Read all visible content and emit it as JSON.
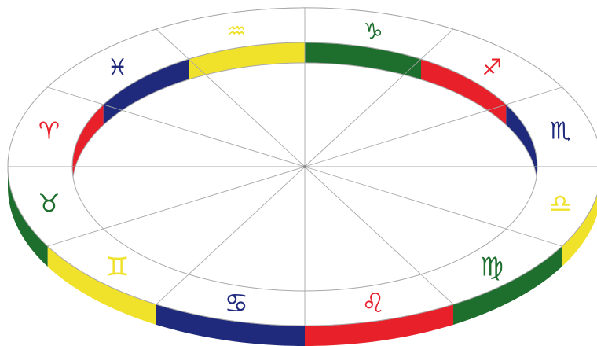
{
  "colors": {
    "red": "#e8202a",
    "blue": "#1f2a7c",
    "yellow": "#f0e12a",
    "green": "#1e6e2e",
    "line": "#a8a8a8",
    "background": "#ffffff"
  },
  "signs": [
    {
      "key": "capricorn",
      "glyph": "♑",
      "color": "green",
      "label": "Capricorn"
    },
    {
      "key": "sagittarius",
      "glyph": "♐",
      "color": "red",
      "label": "Sagittarius"
    },
    {
      "key": "scorpio",
      "glyph": "♏",
      "color": "blue",
      "label": "Scorpio"
    },
    {
      "key": "libra",
      "glyph": "♎",
      "color": "yellow",
      "label": "Libra"
    },
    {
      "key": "virgo",
      "glyph": "♍",
      "color": "green",
      "label": "Virgo"
    },
    {
      "key": "leo",
      "glyph": "♌",
      "color": "red",
      "label": "Leo"
    },
    {
      "key": "cancer",
      "glyph": "♋",
      "color": "blue",
      "label": "Cancer"
    },
    {
      "key": "gemini",
      "glyph": "♊",
      "color": "yellow",
      "label": "Gemini"
    },
    {
      "key": "taurus",
      "glyph": "♉",
      "color": "green",
      "label": "Taurus"
    },
    {
      "key": "aries",
      "glyph": "♈",
      "color": "red",
      "label": "Aries"
    },
    {
      "key": "pisces",
      "glyph": "♓",
      "color": "blue",
      "label": "Pisces"
    },
    {
      "key": "aquarius",
      "glyph": "♒",
      "color": "yellow",
      "label": "Aquarius"
    }
  ]
}
